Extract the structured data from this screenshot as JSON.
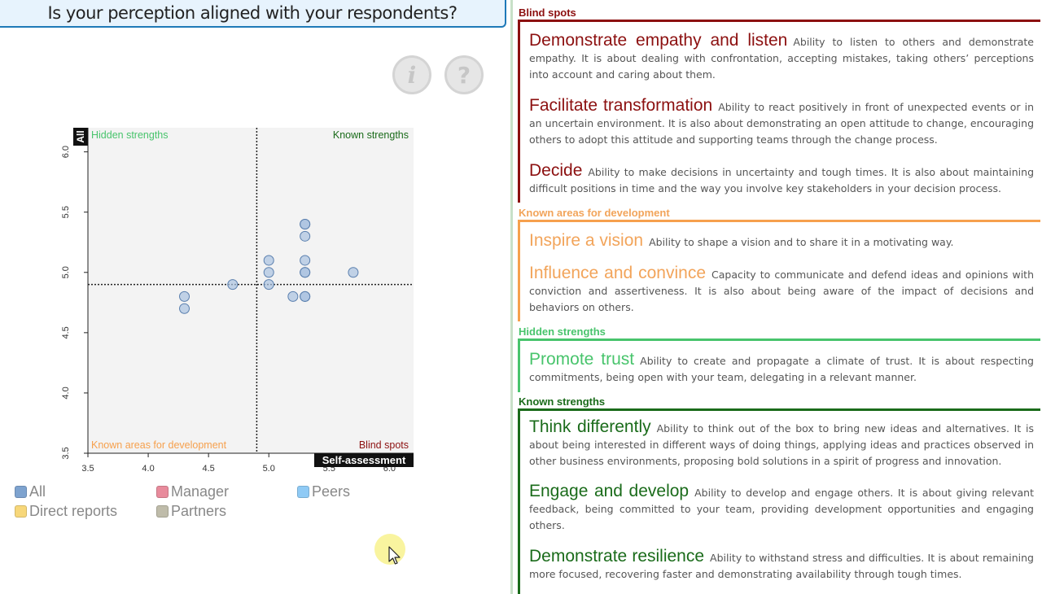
{
  "title": "Is your perception aligned with your respondents?",
  "buttons": {
    "info_glyph": "i",
    "help_glyph": "?",
    "info_icon": "info-icon",
    "help_icon": "help-icon"
  },
  "colors": {
    "blind_spots": "#8c1010",
    "known_areas": "#f6a04d",
    "hidden_strengths": "#48c46c",
    "known_strengths": "#1a6b1a",
    "point_fill": "#a9c2e0",
    "point_stroke": "#5a7fae"
  },
  "chart_data": {
    "type": "scatter",
    "xlabel": "Self-assessment",
    "ylabel": "All",
    "xlim": [
      3.5,
      6.2
    ],
    "ylim": [
      3.5,
      6.2
    ],
    "x_ticks": [
      "3.5",
      "4.0",
      "4.5",
      "5.0",
      "5.5",
      "6.0"
    ],
    "y_ticks": [
      "3.5",
      "4.0",
      "4.5",
      "5.0",
      "5.5",
      "6.0"
    ],
    "threshold_x": 4.9,
    "threshold_y": 4.9,
    "grid": false,
    "quadrants": {
      "top_left": "Hidden strengths",
      "top_right": "Known strengths",
      "bottom_left": "Known areas for development",
      "bottom_right": "Blind spots"
    },
    "points": [
      {
        "x": 4.3,
        "y": 4.8
      },
      {
        "x": 4.3,
        "y": 4.7
      },
      {
        "x": 4.7,
        "y": 4.9
      },
      {
        "x": 5.0,
        "y": 5.1
      },
      {
        "x": 5.0,
        "y": 5.0
      },
      {
        "x": 5.0,
        "y": 4.9
      },
      {
        "x": 5.2,
        "y": 4.8
      },
      {
        "x": 5.3,
        "y": 5.4
      },
      {
        "x": 5.3,
        "y": 5.4
      },
      {
        "x": 5.3,
        "y": 5.3
      },
      {
        "x": 5.3,
        "y": 5.1
      },
      {
        "x": 5.3,
        "y": 5.0
      },
      {
        "x": 5.3,
        "y": 5.0
      },
      {
        "x": 5.3,
        "y": 4.8
      },
      {
        "x": 5.3,
        "y": 4.8
      },
      {
        "x": 5.7,
        "y": 5.0
      }
    ]
  },
  "legend": [
    {
      "label": "All",
      "color": "#7ea3cf"
    },
    {
      "label": "Manager",
      "color": "#e88b9c"
    },
    {
      "label": "Peers",
      "color": "#8fcaf5"
    },
    {
      "label": "Direct reports",
      "color": "#f7d77a"
    },
    {
      "label": "Partners",
      "color": "#bfbcaa"
    }
  ],
  "sections": {
    "blind_spots": {
      "label": "Blind spots",
      "items": [
        {
          "name": "Demonstrate empathy and listen",
          "desc": "Ability to listen to others and demonstrate empathy. It is about dealing with confrontation, accepting mistakes, taking others’ perceptions into account and caring about them."
        },
        {
          "name": "Facilitate transformation",
          "desc": "Ability to react positively in front of unexpected events or in an uncertain environment. It is also about demonstrating an open attitude to change, encouraging others to adopt this attitude and supporting teams through the change process."
        },
        {
          "name": "Decide",
          "desc": "Ability to make decisions in uncertainty and tough times. It is also about maintaining difficult positions in time and the way you involve key stakeholders in your decision process."
        }
      ]
    },
    "known_areas": {
      "label": "Known areas for development",
      "items": [
        {
          "name": "Inspire a vision",
          "desc": "Ability to shape a vision and to share it in a motivating way."
        },
        {
          "name": "Influence and convince",
          "desc": "Capacity to communicate and defend ideas and opinions with conviction and assertiveness. It is also about being aware of the impact of decisions and behaviors on others."
        }
      ]
    },
    "hidden_strengths": {
      "label": "Hidden strengths",
      "items": [
        {
          "name": "Promote trust",
          "desc": "Ability to create and propagate a climate of trust. It is about respecting commitments, being open with your team, delegating in a relevant manner."
        }
      ]
    },
    "known_strengths": {
      "label": "Known strengths",
      "items": [
        {
          "name": "Think differently",
          "desc": "Ability to think out of the box to bring new ideas and alternatives. It is about being interested in different ways of doing things, applying ideas and practices observed in other business environments, proposing bold solutions in a spirit of progress and innovation."
        },
        {
          "name": "Engage and develop",
          "desc": "Ability to develop and engage others. It is about giving relevant feedback, being committed to your team, providing development opportunities and engaging others."
        },
        {
          "name": "Demonstrate resilience",
          "desc": "Ability to withstand stress and difficulties. It is about remaining more focused, recovering faster and demonstrating availability through tough times."
        }
      ]
    }
  }
}
